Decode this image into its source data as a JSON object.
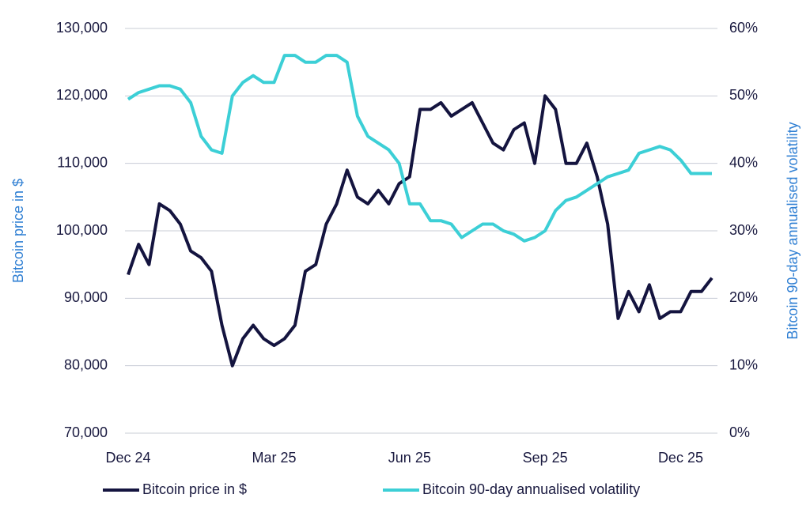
{
  "chart_data": {
    "type": "line",
    "y_label": "Bitcoin price in $",
    "y2_label": "Bitcoin 90-day annualised volatility",
    "categories": [
      "Dec 24",
      null,
      null,
      null,
      null,
      null,
      null,
      null,
      null,
      null,
      null,
      null,
      null,
      null,
      "Mar 25",
      null,
      null,
      null,
      null,
      null,
      null,
      null,
      null,
      null,
      null,
      null,
      null,
      "Jun 25",
      null,
      null,
      null,
      null,
      null,
      null,
      null,
      null,
      null,
      null,
      null,
      null,
      "Sep 25",
      null,
      null,
      null,
      null,
      null,
      null,
      null,
      null,
      null,
      null,
      null,
      null,
      "Dec 25",
      null,
      null,
      null
    ],
    "ylim": [
      70000,
      130000
    ],
    "yticks": [
      {
        "value": 70000,
        "label": "70,000"
      },
      {
        "value": 80000,
        "label": "80,000"
      },
      {
        "value": 90000,
        "label": "90,000"
      },
      {
        "value": 100000,
        "label": "100,000"
      },
      {
        "value": 110000,
        "label": "110,000"
      },
      {
        "value": 120000,
        "label": "120,000"
      },
      {
        "value": 130000,
        "label": "130,000"
      }
    ],
    "y2lim": [
      0,
      60
    ],
    "y2ticks": [
      {
        "value": 0,
        "label": "0%"
      },
      {
        "value": 10,
        "label": "10%"
      },
      {
        "value": 20,
        "label": "20%"
      },
      {
        "value": 30,
        "label": "30%"
      },
      {
        "value": 40,
        "label": "40%"
      },
      {
        "value": 50,
        "label": "50%"
      },
      {
        "value": 60,
        "label": "60%"
      }
    ],
    "grid": true,
    "legend": "bottom",
    "series": [
      {
        "name": "Bitcoin price in $",
        "color": "#14143f",
        "values": [
          93500,
          98000,
          95000,
          104000,
          103000,
          101000,
          97000,
          96000,
          94000,
          86000,
          80000,
          84000,
          86000,
          84000,
          83000,
          84000,
          86000,
          94000,
          95000,
          101000,
          104000,
          109000,
          105000,
          104000,
          106000,
          104000,
          107000,
          108000,
          118000,
          118000,
          119000,
          117000,
          118000,
          119000,
          116000,
          113000,
          112000,
          115000,
          116000,
          110000,
          120000,
          118000,
          110000,
          110000,
          113000,
          108000,
          101000,
          87000,
          91000,
          88000,
          92000,
          87000,
          88000,
          88000,
          91000,
          91000,
          93000
        ]
      },
      {
        "name": "Bitcoin 90-day annualised volatility",
        "color": "#3ccfd6",
        "axis": "y2",
        "values": [
          49.5,
          50.5,
          51,
          51.5,
          51.5,
          51,
          49,
          44,
          42,
          41.5,
          50,
          52,
          53,
          52,
          52,
          56,
          56,
          55,
          55,
          56,
          56,
          55,
          47,
          44,
          43,
          42,
          40,
          34,
          34,
          31.5,
          31.5,
          31,
          29,
          30,
          31,
          31,
          30,
          29.5,
          28.5,
          29,
          30,
          33,
          34.5,
          35,
          36,
          37,
          38,
          38.5,
          39,
          41.5,
          42,
          42.5,
          42,
          40.5,
          38.5,
          38.5,
          38.5
        ]
      }
    ]
  }
}
